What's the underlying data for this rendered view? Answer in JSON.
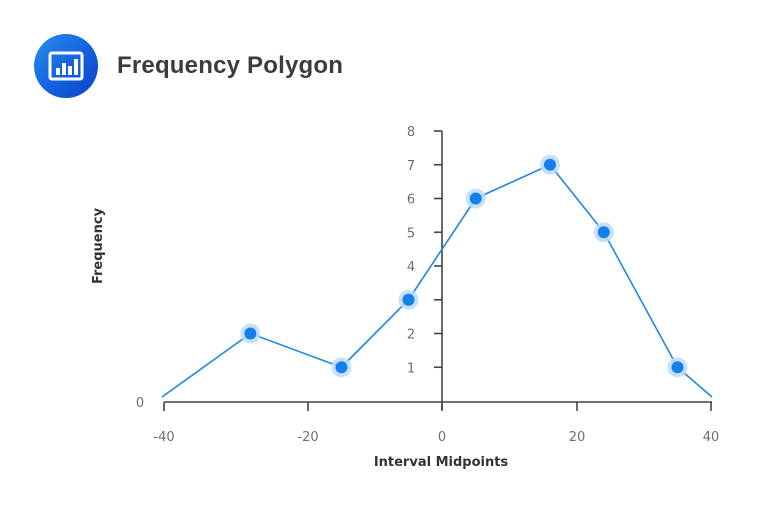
{
  "header": {
    "title": "Frequency Polygon",
    "icon": "bar-chart-icon"
  },
  "colors": {
    "line": "#1e88e5",
    "point": "#1380ea",
    "halo": "#bfdcf7",
    "axis": "#444444",
    "title_text": "#3c3c3c",
    "icon_bg_start": "#2a8df0",
    "icon_bg_end": "#0d3fc8"
  },
  "chart_data": {
    "type": "line",
    "title": "Frequency Polygon",
    "xlabel": "Interval Midpoints",
    "ylabel": "Frequency",
    "x_ticks": [
      "-40",
      "-20",
      "0",
      "20",
      "40"
    ],
    "y_ticks": [
      "1",
      "2",
      "3",
      "4",
      "5",
      "6",
      "7",
      "8"
    ],
    "y_origin_label": "0",
    "xlim": [
      -40,
      40
    ],
    "ylim": [
      0,
      8
    ],
    "grid": false,
    "legend": null,
    "series": [
      {
        "name": "Frequency",
        "x": [
          -40,
          -28,
          -15,
          -5,
          5,
          16,
          24,
          35,
          40
        ],
        "y": [
          0,
          2,
          1,
          3,
          6,
          7,
          5,
          1,
          0
        ],
        "markers_at": [
          -28,
          -15,
          -5,
          5,
          16,
          24,
          35
        ]
      }
    ]
  }
}
